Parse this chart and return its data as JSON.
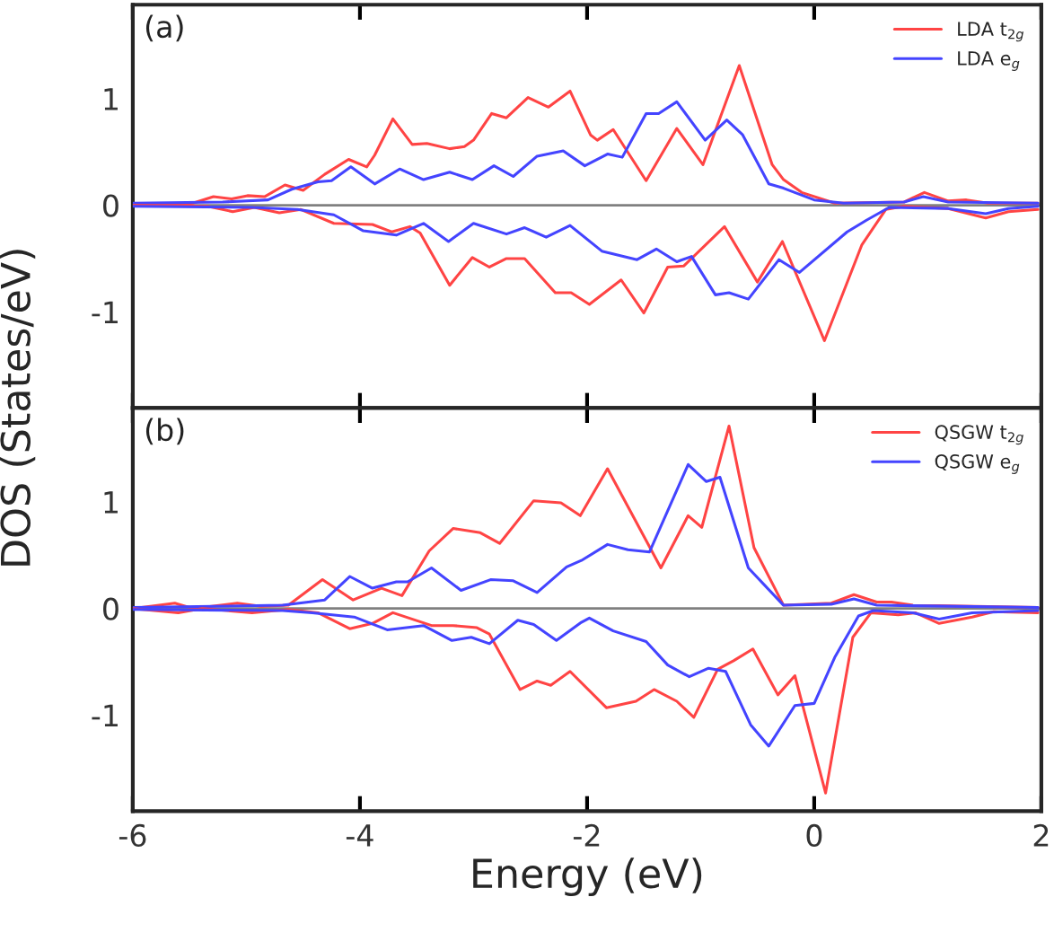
{
  "chart_data": [
    {
      "type": "line",
      "ylabel": "DOS (States/eV)",
      "annotations": [
        "(a)"
      ],
      "xlim": [
        -6,
        2
      ],
      "ylim": [
        -1.9,
        1.88
      ],
      "xticks": [
        {
          "value": -6,
          "label": null
        },
        {
          "value": -4,
          "label": null
        },
        {
          "value": -2,
          "label": null
        },
        {
          "value": 0,
          "label": null
        },
        {
          "value": 2,
          "label": null
        }
      ],
      "yticks": [
        {
          "value": -1,
          "label": "-1"
        },
        0,
        1
      ],
      "tick_labels": "y",
      "grid": false,
      "legend": "top right",
      "line_style": "solid",
      "marker": "none",
      "ref_lines": [
        {
          "axis": "y",
          "value": 0,
          "color": "#808080"
        }
      ],
      "series": [
        {
          "name": "LDA t$_{2g}$",
          "color": "#ff4444",
          "x": [
            -6,
            -5.7,
            -5.47,
            -5.29,
            -5.13,
            -4.99,
            -4.84,
            -4.66,
            -4.5,
            -4.31,
            -4.1,
            -3.94,
            -3.87,
            -3.71,
            -3.54,
            -3.41,
            -3.21,
            -3.08,
            -3.0,
            -2.84,
            -2.71,
            -2.52,
            -2.34,
            -2.15,
            -1.97,
            -1.91,
            -1.77,
            -1.48,
            -1.21,
            -0.98,
            -0.66,
            -0.37,
            -0.27,
            -0.11,
            0.18,
            0.79,
            0.97,
            1.18,
            1.34,
            1.53,
            1.97
          ],
          "values": [
            0,
            0,
            0.02,
            0.08,
            0.06,
            0.09,
            0.08,
            0.19,
            0.14,
            0.29,
            0.43,
            0.36,
            0.47,
            0.81,
            0.57,
            0.58,
            0.53,
            0.55,
            0.61,
            0.86,
            0.82,
            1.01,
            0.92,
            1.07,
            0.66,
            0.61,
            0.71,
            0.23,
            0.72,
            0.38,
            1.31,
            0.38,
            0.24,
            0.12,
            0.02,
            0.03,
            0.12,
            0.04,
            0.05,
            0.02,
            0.02
          ]
        },
        {
          "name": "LDA e$_{g}$",
          "color": "#4444ff",
          "x": [
            -6,
            -5.21,
            -4.81,
            -4.6,
            -4.37,
            -4.25,
            -4.08,
            -3.87,
            -3.65,
            -3.44,
            -3.21,
            -3.01,
            -2.82,
            -2.65,
            -2.44,
            -2.21,
            -2.02,
            -1.82,
            -1.69,
            -1.48,
            -1.37,
            -1.21,
            -0.96,
            -0.77,
            -0.63,
            -0.4,
            -0.27,
            0.0,
            0.26,
            0.79,
            0.96,
            1.18,
            1.97
          ],
          "values": [
            0.02,
            0.03,
            0.05,
            0.15,
            0.22,
            0.23,
            0.36,
            0.2,
            0.34,
            0.24,
            0.31,
            0.24,
            0.37,
            0.27,
            0.46,
            0.51,
            0.37,
            0.48,
            0.45,
            0.86,
            0.86,
            0.97,
            0.61,
            0.8,
            0.66,
            0.2,
            0.16,
            0.05,
            0.02,
            0.03,
            0.08,
            0.03,
            0.02
          ]
        },
        {
          "color": "#ff4444",
          "x": [
            -6,
            -5.34,
            -5.12,
            -4.93,
            -4.71,
            -4.52,
            -4.23,
            -3.89,
            -3.72,
            -3.56,
            -3.47,
            -3.21,
            -3.01,
            -2.86,
            -2.71,
            -2.55,
            -2.28,
            -2.14,
            -1.98,
            -1.7,
            -1.5,
            -1.29,
            -1.15,
            -0.79,
            -0.5,
            -0.28,
            0.09,
            0.42,
            0.63,
            0.79,
            1.18,
            1.51,
            1.71,
            1.97
          ],
          "values": [
            0,
            -0.01,
            -0.06,
            -0.02,
            -0.07,
            -0.04,
            -0.17,
            -0.18,
            -0.25,
            -0.2,
            -0.26,
            -0.75,
            -0.49,
            -0.58,
            -0.5,
            -0.5,
            -0.82,
            -0.82,
            -0.93,
            -0.7,
            -1.01,
            -0.58,
            -0.57,
            -0.2,
            -0.72,
            -0.34,
            -1.27,
            -0.37,
            -0.04,
            -0.01,
            -0.03,
            -0.12,
            -0.06,
            -0.04
          ]
        },
        {
          "color": "#4444ff",
          "x": [
            -6,
            -4.95,
            -4.55,
            -4.23,
            -3.97,
            -3.68,
            -3.44,
            -3.22,
            -3.0,
            -2.71,
            -2.55,
            -2.36,
            -2.15,
            -1.87,
            -1.56,
            -1.39,
            -1.21,
            -1.08,
            -0.87,
            -0.75,
            -0.58,
            -0.31,
            -0.13,
            0.29,
            0.46,
            0.66,
            1.18,
            1.51,
            1.71,
            1.97
          ],
          "values": [
            -0.01,
            -0.02,
            -0.04,
            -0.09,
            -0.24,
            -0.28,
            -0.17,
            -0.34,
            -0.17,
            -0.27,
            -0.21,
            -0.3,
            -0.19,
            -0.43,
            -0.51,
            -0.41,
            -0.53,
            -0.48,
            -0.84,
            -0.82,
            -0.88,
            -0.51,
            -0.63,
            -0.25,
            -0.14,
            -0.02,
            -0.03,
            -0.08,
            -0.03,
            -0.01
          ]
        }
      ]
    },
    {
      "type": "line",
      "xlabel": "Energy (eV)",
      "annotations": [
        "(b)"
      ],
      "xlim": [
        -6,
        2
      ],
      "ylim": [
        -1.9,
        1.88
      ],
      "xticks": [
        -6,
        -4,
        -2,
        0,
        2
      ],
      "yticks": [
        {
          "value": -1,
          "label": "-1"
        },
        0,
        1
      ],
      "grid": false,
      "legend": "top right",
      "line_style": "solid",
      "marker": "none",
      "ref_lines": [
        {
          "axis": "y",
          "value": 0,
          "color": "#808080"
        }
      ],
      "series": [
        {
          "name": "QSGW t$_{2g}$",
          "color": "#ff4444",
          "x": [
            -6,
            -5.63,
            -5.47,
            -5.08,
            -4.87,
            -4.63,
            -4.33,
            -4.06,
            -3.81,
            -3.63,
            -3.39,
            -3.18,
            -2.94,
            -2.77,
            -2.47,
            -2.23,
            -2.06,
            -1.82,
            -1.35,
            -1.11,
            -0.99,
            -0.75,
            -0.53,
            -0.27,
            0.15,
            0.35,
            0.55,
            0.68,
            0.87,
            1.97
          ],
          "values": [
            0,
            0.05,
            0,
            0.05,
            0.02,
            0.03,
            0.27,
            0.08,
            0.19,
            0.12,
            0.54,
            0.75,
            0.71,
            0.61,
            1.01,
            0.99,
            0.87,
            1.31,
            0.38,
            0.87,
            0.76,
            1.71,
            0.57,
            0.03,
            0.05,
            0.13,
            0.06,
            0.06,
            0.03,
            0.01
          ]
        },
        {
          "name": "QSGW e$_{g}$",
          "color": "#4444ff",
          "x": [
            -6,
            -4.68,
            -4.31,
            -4.09,
            -3.89,
            -3.68,
            -3.58,
            -3.37,
            -3.11,
            -2.85,
            -2.65,
            -2.44,
            -2.18,
            -2.05,
            -1.82,
            -1.64,
            -1.45,
            -1.11,
            -0.95,
            -0.83,
            -0.58,
            -0.27,
            0.15,
            0.35,
            0.55,
            1.97
          ],
          "values": [
            0.01,
            0.03,
            0.08,
            0.3,
            0.19,
            0.25,
            0.25,
            0.38,
            0.17,
            0.27,
            0.26,
            0.15,
            0.39,
            0.45,
            0.6,
            0.55,
            0.53,
            1.35,
            1.19,
            1.23,
            0.38,
            0.03,
            0.04,
            0.09,
            0.03,
            0.01
          ]
        },
        {
          "color": "#ff4444",
          "x": [
            -6,
            -5.6,
            -5.39,
            -4.95,
            -4.63,
            -4.37,
            -4.09,
            -3.89,
            -3.71,
            -3.37,
            -3.18,
            -2.97,
            -2.86,
            -2.59,
            -2.44,
            -2.32,
            -2.15,
            -1.83,
            -1.57,
            -1.41,
            -1.21,
            -1.06,
            -0.85,
            -0.71,
            -0.54,
            -0.32,
            -0.17,
            0.1,
            0.34,
            0.5,
            0.74,
            0.89,
            1.1,
            1.39,
            1.58,
            1.97
          ],
          "values": [
            0,
            -0.04,
            0,
            -0.04,
            -0.01,
            -0.04,
            -0.19,
            -0.14,
            -0.04,
            -0.16,
            -0.16,
            -0.18,
            -0.24,
            -0.76,
            -0.68,
            -0.72,
            -0.59,
            -0.93,
            -0.87,
            -0.76,
            -0.87,
            -1.02,
            -0.57,
            -0.49,
            -0.38,
            -0.81,
            -0.63,
            -1.73,
            -0.27,
            -0.04,
            -0.06,
            -0.04,
            -0.14,
            -0.08,
            -0.03,
            -0.04
          ]
        },
        {
          "color": "#4444ff",
          "x": [
            -6,
            -4.68,
            -4.42,
            -4.05,
            -3.76,
            -3.44,
            -3.19,
            -3.02,
            -2.86,
            -2.61,
            -2.47,
            -2.27,
            -2.05,
            -1.98,
            -1.77,
            -1.48,
            -1.29,
            -1.1,
            -0.93,
            -0.78,
            -0.56,
            -0.4,
            -0.17,
            0.0,
            0.18,
            0.39,
            0.52,
            0.87,
            1.1,
            1.39,
            1.97
          ],
          "values": [
            -0.01,
            -0.02,
            -0.04,
            -0.08,
            -0.2,
            -0.16,
            -0.3,
            -0.27,
            -0.33,
            -0.11,
            -0.15,
            -0.3,
            -0.13,
            -0.09,
            -0.21,
            -0.31,
            -0.53,
            -0.64,
            -0.56,
            -0.59,
            -1.09,
            -1.29,
            -0.91,
            -0.89,
            -0.46,
            -0.07,
            -0.02,
            -0.04,
            -0.1,
            -0.04,
            -0.02
          ]
        }
      ]
    }
  ]
}
